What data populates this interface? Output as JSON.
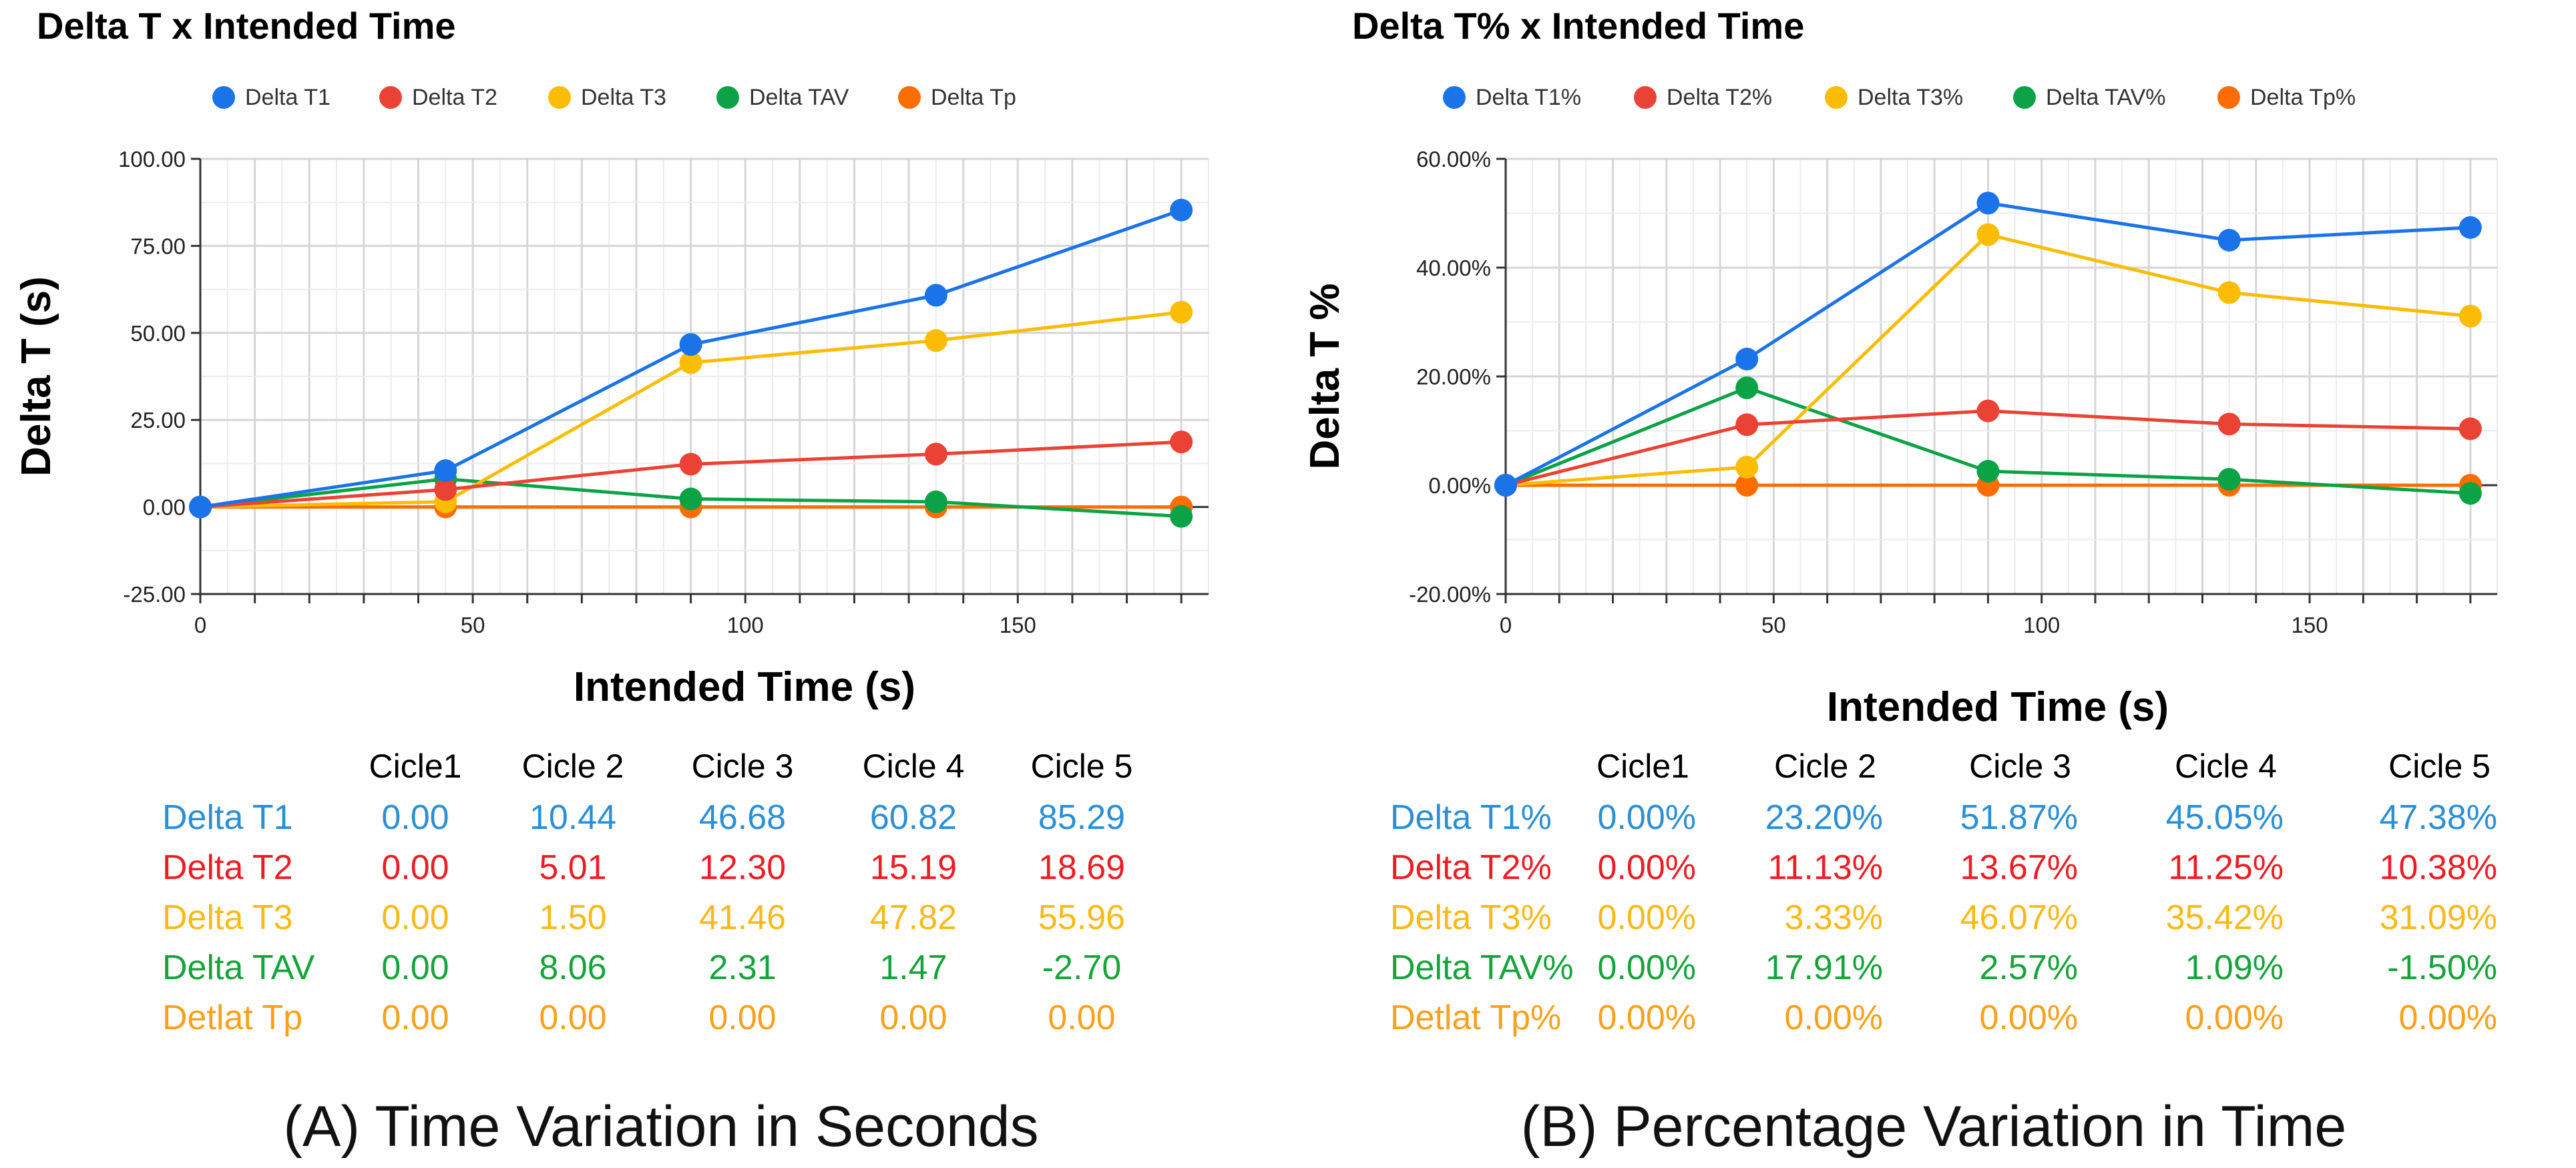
{
  "colors": {
    "T1": "#1a73e8",
    "T2": "#ea4335",
    "T3": "#fbbc04",
    "TAV": "#0ba345",
    "Tp": "#ff6d01",
    "tbl_T1": "#2a8fd6",
    "tbl_T2": "#ee1c25",
    "tbl_T3": "#fbb917",
    "tbl_TAV": "#14a53a",
    "tbl_Tp": "#f9a11b"
  },
  "chart_data": [
    {
      "type": "line",
      "title": "Delta T x Intended Time",
      "xlabel": "Intended Time (s)",
      "ylabel": "Delta T (s)",
      "x": [
        0,
        45,
        90,
        135,
        180
      ],
      "xlim": [
        0,
        185
      ],
      "xticks": [
        "0",
        "50",
        "100",
        "150"
      ],
      "xtick_values": [
        0,
        50,
        100,
        150
      ],
      "ylim": [
        -25,
        100
      ],
      "yticks": [
        "100.00",
        "75.00",
        "50.00",
        "25.00",
        "0.00",
        "-25.00"
      ],
      "ytick_values": [
        100,
        75,
        50,
        25,
        0,
        -25
      ],
      "grid": true,
      "legend_position": "top",
      "series": [
        {
          "key": "T1",
          "name": "Delta T1",
          "values": [
            0,
            10.44,
            46.68,
            60.82,
            85.29
          ]
        },
        {
          "key": "T2",
          "name": "Delta T2",
          "values": [
            0,
            5.01,
            12.3,
            15.19,
            18.69
          ]
        },
        {
          "key": "T3",
          "name": "Delta T3",
          "values": [
            0,
            1.5,
            41.46,
            47.82,
            55.96
          ]
        },
        {
          "key": "TAV",
          "name": "Delta TAV",
          "values": [
            0,
            8.06,
            2.31,
            1.47,
            -2.7
          ]
        },
        {
          "key": "Tp",
          "name": "Delta Tp",
          "values": [
            0,
            0,
            0,
            0,
            0
          ]
        }
      ]
    },
    {
      "type": "line",
      "title": "Delta T% x Intended Time",
      "xlabel": "Intended Time (s)",
      "ylabel": "Delta T %",
      "x": [
        0,
        45,
        90,
        135,
        180
      ],
      "xlim": [
        0,
        185
      ],
      "xticks": [
        "0",
        "50",
        "100",
        "150"
      ],
      "xtick_values": [
        0,
        50,
        100,
        150
      ],
      "ylim": [
        -20,
        60
      ],
      "yticks": [
        "60.00%",
        "40.00%",
        "20.00%",
        "0.00%",
        "-20.00%"
      ],
      "ytick_values": [
        60,
        40,
        20,
        0,
        -20
      ],
      "grid": true,
      "legend_position": "top",
      "series": [
        {
          "key": "T1",
          "name": "Delta T1%",
          "values": [
            0,
            23.2,
            51.87,
            45.05,
            47.38
          ]
        },
        {
          "key": "T2",
          "name": "Delta T2%",
          "values": [
            0,
            11.13,
            13.67,
            11.25,
            10.38
          ]
        },
        {
          "key": "T3",
          "name": "Delta T3%",
          "values": [
            0,
            3.33,
            46.07,
            35.42,
            31.09
          ]
        },
        {
          "key": "TAV",
          "name": "Delta TAV%",
          "values": [
            0,
            17.91,
            2.57,
            1.09,
            -1.5
          ]
        },
        {
          "key": "Tp",
          "name": "Delta Tp%",
          "values": [
            0,
            0,
            0,
            0,
            0
          ]
        }
      ]
    }
  ],
  "tables": [
    {
      "headers": [
        "Cicle1",
        "Cicle 2",
        "Cicle 3",
        "Cicle 4",
        "Cicle 5"
      ],
      "rows": [
        {
          "key": "T1",
          "label": "Delta T1",
          "cells": [
            "0.00",
            "10.44",
            "46.68",
            "60.82",
            "85.29"
          ]
        },
        {
          "key": "T2",
          "label": "Delta T2",
          "cells": [
            "0.00",
            "5.01",
            "12.30",
            "15.19",
            "18.69"
          ]
        },
        {
          "key": "T3",
          "label": "Delta T3",
          "cells": [
            "0.00",
            "1.50",
            "41.46",
            "47.82",
            "55.96"
          ]
        },
        {
          "key": "TAV",
          "label": "Delta TAV",
          "cells": [
            "0.00",
            "8.06",
            "2.31",
            "1.47",
            "-2.70"
          ]
        },
        {
          "key": "Tp",
          "label": "Detlat Tp",
          "cells": [
            "0.00",
            "0.00",
            "0.00",
            "0.00",
            "0.00"
          ]
        }
      ]
    },
    {
      "headers": [
        "Cicle1",
        "Cicle 2",
        "Cicle 3",
        "Cicle 4",
        "Cicle 5"
      ],
      "rows": [
        {
          "key": "T1",
          "label": "Delta T1%",
          "cells": [
            "0.00%",
            "23.20%",
            "51.87%",
            "45.05%",
            "47.38%"
          ]
        },
        {
          "key": "T2",
          "label": "Delta T2%",
          "cells": [
            "0.00%",
            "11.13%",
            "13.67%",
            "11.25%",
            "10.38%"
          ]
        },
        {
          "key": "T3",
          "label": "Delta T3%",
          "cells": [
            "0.00%",
            "3.33%",
            "46.07%",
            "35.42%",
            "31.09%"
          ]
        },
        {
          "key": "TAV",
          "label": "Delta TAV%",
          "cells": [
            "0.00%",
            "17.91%",
            "2.57%",
            "1.09%",
            "-1.50%"
          ]
        },
        {
          "key": "Tp",
          "label": "Detlat Tp%",
          "cells": [
            "0.00%",
            "0.00%",
            "0.00%",
            "0.00%",
            "0.00%"
          ]
        }
      ]
    }
  ],
  "captions": [
    "(A) Time Variation in Seconds",
    "(B) Percentage Variation in Time"
  ]
}
